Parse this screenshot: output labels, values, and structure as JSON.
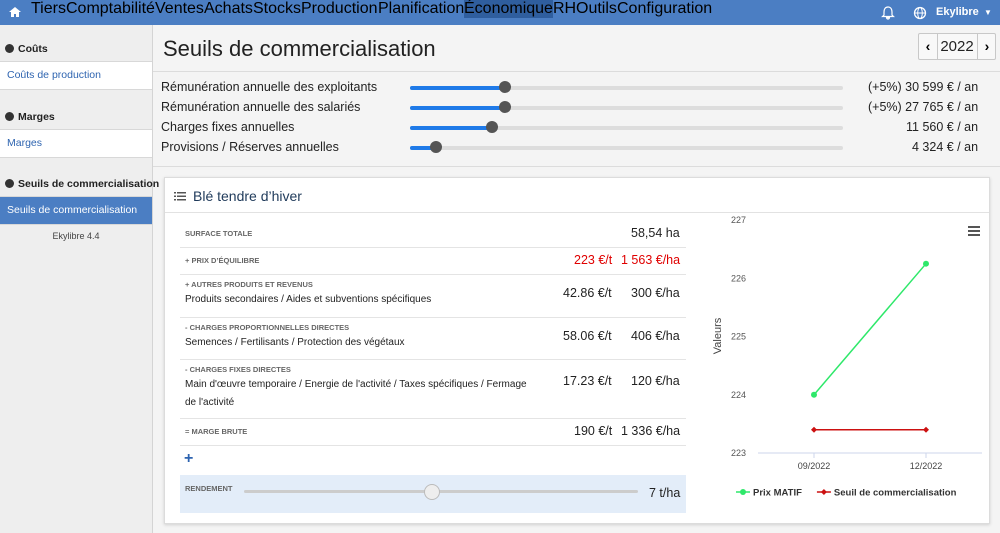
{
  "nav": {
    "items": [
      "Tiers",
      "Comptabilité",
      "Ventes",
      "Achats",
      "Stocks",
      "Production",
      "Planification",
      "Économique",
      "RH",
      "Outils",
      "Configuration"
    ],
    "active": 7,
    "user": "Ekylibre"
  },
  "sidebar": {
    "sections": [
      {
        "title": "Coûts",
        "links": [
          "Coûts de production"
        ]
      },
      {
        "title": "Marges",
        "links": [
          "Marges"
        ]
      },
      {
        "title": "Seuils de commercialisation",
        "links": [
          "Seuils de commercialisation"
        ],
        "active": true
      }
    ],
    "version": "Ekylibre 4.4"
  },
  "header": {
    "title": "Seuils de commercialisation",
    "year": "2022"
  },
  "sliders": [
    {
      "label": "Rémunération annuelle des exploitants",
      "value": "(+5%) 30 599 € / an"
    },
    {
      "label": "Rémunération annuelle des salariés",
      "value": "(+5%) 27 765 € / an"
    },
    {
      "label": "Charges fixes annuelles",
      "value": "11 560 € / an"
    },
    {
      "label": "Provisions / Réserves annuelles",
      "value": "4 324 € / an"
    }
  ],
  "card": {
    "title": "Blé tendre d’hiver",
    "rows": [
      {
        "label": "SURFACE TOTALE",
        "per_ha": "58,54 ha"
      },
      {
        "label": "+ PRIX D’ÉQUILIBRE",
        "per_t": "223 €/t",
        "per_ha": "1 563 €/ha",
        "color": "#e00000"
      },
      {
        "label": "+ AUTRES PRODUITS ET REVENUS",
        "detail": "Produits secondaires / Aides et subventions spécifiques",
        "per_t": "42.86 €/t",
        "per_ha": "300 €/ha"
      },
      {
        "label": "- CHARGES PROPORTIONNELLES DIRECTES",
        "detail": "Semences / Fertilisants / Protection des végétaux",
        "per_t": "58.06 €/t",
        "per_ha": "406 €/ha"
      },
      {
        "label": "- CHARGES FIXES DIRECTES",
        "detail": "Main d'œuvre temporaire / Energie de l'activité / Taxes spécifiques / Fermage de l'activité",
        "per_t": "17.23 €/t",
        "per_ha": "120 €/ha"
      },
      {
        "label": "= MARGE BRUTE",
        "per_t": "190 €/t",
        "per_ha": "1 336 €/ha"
      }
    ],
    "add": "+",
    "rendement": {
      "label": "RENDEMENT",
      "value": "7 t/ha"
    }
  },
  "chart_data": {
    "type": "line",
    "y_label": "Valeurs",
    "categories": [
      "09/2022",
      "12/2022"
    ],
    "series": [
      {
        "name": "Prix MATIF",
        "color": "#2ee86a",
        "marker": "circle",
        "values": [
          224,
          226.25
        ]
      },
      {
        "name": "Seuil de commercialisation",
        "color": "#cc1111",
        "marker": "diamond",
        "values": [
          223.4,
          223.4
        ]
      }
    ],
    "ylim": [
      223,
      227
    ],
    "yticks": [
      223,
      224,
      225,
      226,
      227
    ],
    "grid": false,
    "legend": "bottom"
  }
}
